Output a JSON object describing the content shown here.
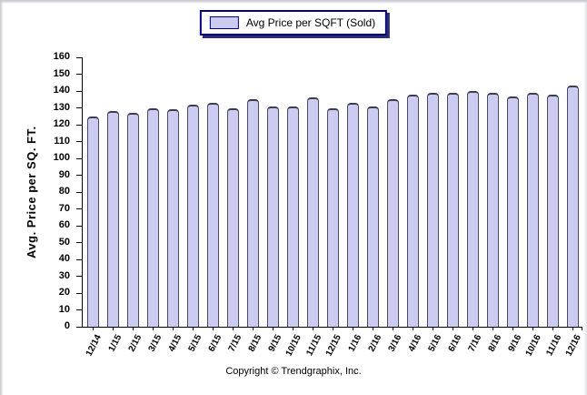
{
  "legend": {
    "label": "Avg Price per SQFT (Sold)"
  },
  "footer": {
    "copyright": "Copyright © Trendgraphix, Inc."
  },
  "chart_data": {
    "type": "bar",
    "title": "",
    "series_name": "Avg Price per SQFT (Sold)",
    "categories": [
      "12/14",
      "1/15",
      "2/15",
      "3/15",
      "4/15",
      "5/15",
      "6/15",
      "7/15",
      "8/15",
      "9/15",
      "10/15",
      "11/15",
      "12/15",
      "1/16",
      "2/16",
      "3/16",
      "4/16",
      "5/16",
      "6/16",
      "7/16",
      "8/16",
      "9/16",
      "10/16",
      "11/16",
      "12/16"
    ],
    "values": [
      125,
      128,
      127,
      130,
      129,
      132,
      133,
      130,
      135,
      131,
      131,
      136,
      130,
      133,
      131,
      135,
      138,
      139,
      139,
      140,
      139,
      137,
      139,
      138,
      143
    ],
    "xlabel": "",
    "ylabel": "Avg. Price per SQ. FT.",
    "ylim": [
      0,
      160
    ],
    "yticks": [
      0,
      10,
      20,
      30,
      40,
      50,
      60,
      70,
      80,
      90,
      100,
      110,
      120,
      130,
      140,
      150,
      160
    ],
    "grid": false,
    "legend_position": "top-center",
    "colors": {
      "bar_fill": "#ccccf2",
      "bar_border": "#4b4b5e",
      "legend_border": "#00007f",
      "axis": "#000000"
    }
  }
}
